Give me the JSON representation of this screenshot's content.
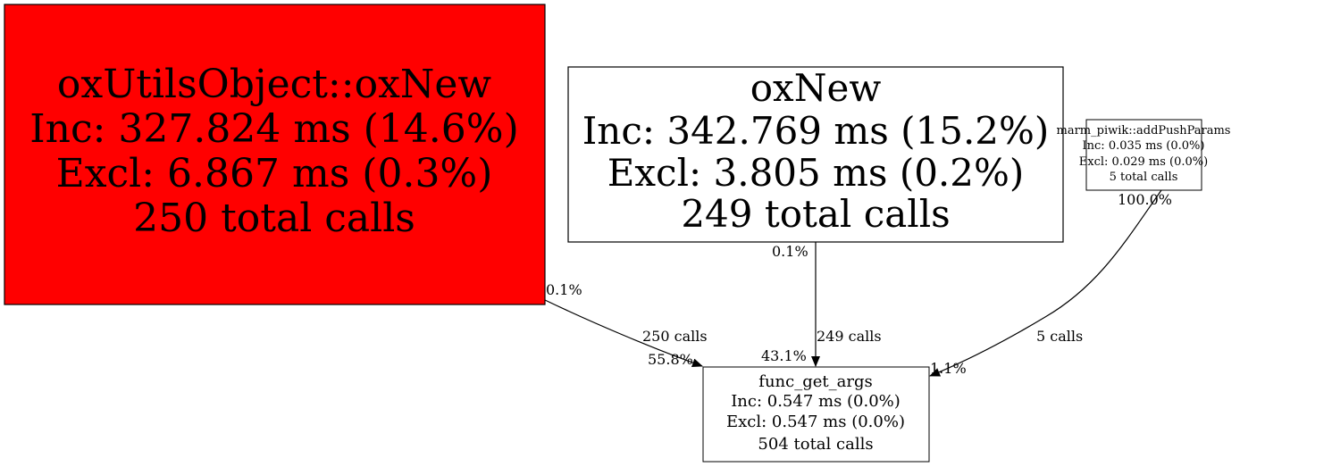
{
  "nodes": {
    "oxutils": {
      "name": "oxUtilsObject::oxNew",
      "inc": "Inc: 327.824 ms (14.6%)",
      "excl": "Excl: 6.867 ms (0.3%)",
      "calls": "250 total calls",
      "fill": "#ff0000"
    },
    "oxnew": {
      "name": "oxNew",
      "inc": "Inc: 342.769 ms (15.2%)",
      "excl": "Excl: 3.805 ms (0.2%)",
      "calls": "249 total calls",
      "fill": "#ffffff"
    },
    "piwik": {
      "name": "marm_piwik::addPushParams",
      "inc": "Inc: 0.035 ms (0.0%)",
      "excl": "Excl: 0.029 ms (0.0%)",
      "calls": "5 total calls",
      "fill": "#ffffff"
    },
    "funcgetargs": {
      "name": "func_get_args",
      "inc": "Inc: 0.547 ms (0.0%)",
      "excl": "Excl: 0.547 ms (0.0%)",
      "calls": "504 total calls",
      "fill": "#ffffff"
    }
  },
  "edges": [
    {
      "from": "oxUtilsObject::oxNew",
      "to": "func_get_args",
      "tail": "0.1%",
      "label": "250 calls",
      "head": "55.8%"
    },
    {
      "from": "oxNew",
      "to": "func_get_args",
      "tail": "0.1%",
      "label": "249 calls",
      "head": "43.1%"
    },
    {
      "from": "marm_piwik::addPushParams",
      "to": "func_get_args",
      "tail": "100.0%",
      "label": "5 calls",
      "head": "1.1%"
    }
  ]
}
